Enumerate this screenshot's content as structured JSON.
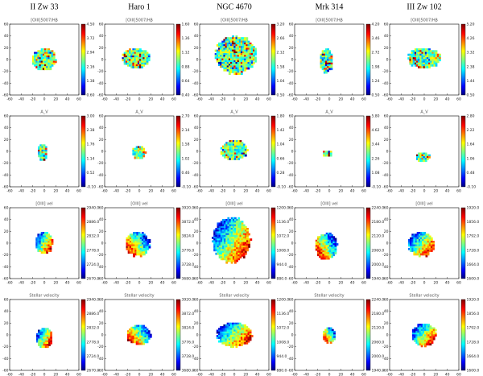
{
  "columns": [
    "II Zw 33",
    "Haro 1",
    "NGC 4670",
    "Mrk 314",
    "III Zw 102"
  ],
  "axis_ticks": [
    "-60",
    "-40",
    "-20",
    "0",
    "20",
    "40",
    "60"
  ],
  "rows": [
    {
      "title": "[OIII]5007/Hβ",
      "colorbars": [
        [
          "4.50",
          "3.72",
          "2.94",
          "2.16",
          "1.38",
          "0.60"
        ],
        [
          "1.60",
          "1.36",
          "1.12",
          "0.88",
          "0.64",
          "0.40"
        ],
        [
          "3.20",
          "2.66",
          "2.12",
          "1.58",
          "1.04",
          "0.50"
        ],
        [
          "4.20",
          "3.46",
          "2.72",
          "1.98",
          "1.24",
          "0.50"
        ],
        [
          "5.20",
          "4.26",
          "3.32",
          "2.38",
          "1.44",
          "0.50"
        ]
      ]
    },
    {
      "title": "A_V",
      "colorbars": [
        [
          "3.00",
          "2.38",
          "1.76",
          "1.14",
          "0.52",
          "-0.10"
        ],
        [
          "2.70",
          "2.14",
          "1.58",
          "1.02",
          "0.46",
          "-0.10"
        ],
        [
          "1.80",
          "1.42",
          "1.04",
          "0.66",
          "0.28",
          "-0.10"
        ],
        [
          "5.80",
          "4.62",
          "3.44",
          "2.26",
          "1.08",
          "-0.10"
        ],
        [
          "2.80",
          "2.22",
          "1.64",
          "1.06",
          "0.48",
          "-0.10"
        ]
      ]
    },
    {
      "title": "[OIII] vel",
      "colorbars": [
        [
          "2940.0",
          "2886.0",
          "2832.0",
          "2778.0",
          "2724.0",
          "2670.0"
        ],
        [
          "3920.0",
          "3872.0",
          "3824.0",
          "3776.0",
          "3728.0",
          "3680.0"
        ],
        [
          "1200.0",
          "1136.0",
          "1072.0",
          "1008.0",
          "944.0",
          "880.0"
        ],
        [
          "2240.0",
          "2180.0",
          "2120.0",
          "2060.0",
          "2000.0",
          "1940.0"
        ],
        [
          "1920.0",
          "1856.0",
          "1792.0",
          "1728.0",
          "1664.0",
          "1600.0"
        ]
      ]
    },
    {
      "title": "Stellar velocity",
      "colorbars": [
        [
          "2940.0",
          "2886.0",
          "2832.0",
          "2778.0",
          "2724.0",
          "2670.0"
        ],
        [
          "3920.0",
          "3872.0",
          "3824.0",
          "3776.0",
          "3728.0",
          "3680.0"
        ],
        [
          "1200.0",
          "1136.0",
          "1072.0",
          "1008.0",
          "944.0",
          "880.0"
        ],
        [
          "2240.0",
          "2180.0",
          "2120.0",
          "2060.0",
          "2000.0",
          "1940.0"
        ],
        [
          "1920.0",
          "1856.0",
          "1792.0",
          "1728.0",
          "1664.0",
          "1600.0"
        ]
      ]
    }
  ]
}
